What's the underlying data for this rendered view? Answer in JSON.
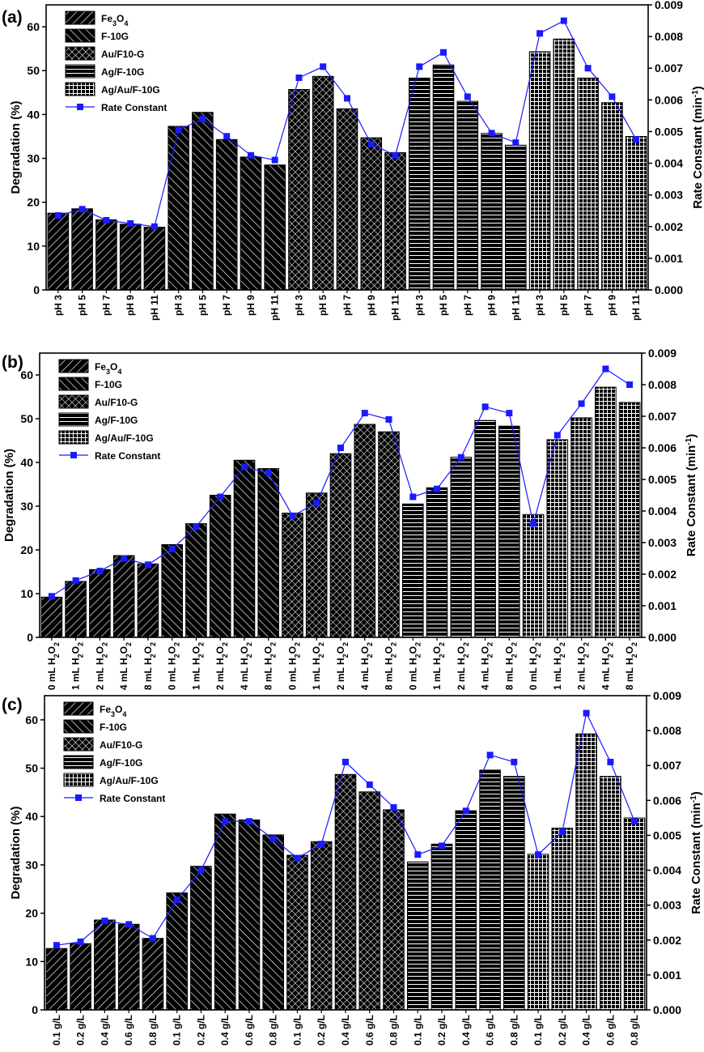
{
  "figure": {
    "legend_labels": [
      "Fe3O4",
      "F-10G",
      "Au/F10-G",
      "Ag/F-10G",
      "Ag/Au/F-10G",
      "Rate Constant"
    ],
    "colors": {
      "bar_fill": "#000000",
      "hatch": "#ffffff",
      "line": "#1a1aff",
      "marker": "#1a1aff"
    }
  },
  "chart_data": [
    {
      "type": "bar",
      "panel_label": "(a)",
      "title": "",
      "xlabel": "",
      "ylabel": "Degradation (%)",
      "y2label": "Rate Constant (min-1)",
      "ylim": [
        0,
        65
      ],
      "y2lim": [
        0,
        0.009
      ],
      "yticks": [
        0,
        10,
        20,
        30,
        40,
        50,
        60
      ],
      "y2ticks": [
        "0.000",
        "0.001",
        "0.002",
        "0.003",
        "0.004",
        "0.005",
        "0.006",
        "0.007",
        "0.008",
        "0.009"
      ],
      "groups": [
        "Fe3O4",
        "F-10G",
        "Au/F10-G",
        "Ag/F-10G",
        "Ag/Au/F-10G"
      ],
      "categories": [
        "pH 3",
        "pH 5",
        "pH 7",
        "pH 9",
        "pH 11",
        "pH 3",
        "pH 5",
        "pH 7",
        "pH 9",
        "pH 11",
        "pH 3",
        "pH 5",
        "pH 7",
        "pH 9",
        "pH 11",
        "pH 3",
        "pH 5",
        "pH 7",
        "pH 9",
        "pH 11",
        "pH 3",
        "pH 5",
        "pH 7",
        "pH 9",
        "pH 11"
      ],
      "series": [
        {
          "name": "Degradation",
          "axis": "left",
          "values": [
            17.5,
            18.5,
            16,
            15,
            14.3,
            37.3,
            40.5,
            34.3,
            30.3,
            28.5,
            45.7,
            48.7,
            41.3,
            34.7,
            31.3,
            48.3,
            51.3,
            43,
            35.7,
            33,
            54.3,
            57.2,
            48.3,
            42.7,
            35
          ]
        },
        {
          "name": "Rate Constant",
          "axis": "right",
          "values": [
            0.00235,
            0.00255,
            0.0022,
            0.0021,
            0.002,
            0.00505,
            0.0054,
            0.00485,
            0.00425,
            0.0041,
            0.0067,
            0.00705,
            0.00605,
            0.0046,
            0.00425,
            0.00705,
            0.0075,
            0.0061,
            0.00495,
            0.00465,
            0.0081,
            0.0085,
            0.007,
            0.0061,
            0.00475
          ]
        }
      ]
    },
    {
      "type": "bar",
      "panel_label": "(b)",
      "title": "",
      "xlabel": "",
      "ylabel": "Degradation (%)",
      "y2label": "Rate Constant (min-1)",
      "ylim": [
        0,
        65
      ],
      "y2lim": [
        0,
        0.009
      ],
      "yticks": [
        0,
        10,
        20,
        30,
        40,
        50,
        60
      ],
      "y2ticks": [
        "0.000",
        "0.001",
        "0.002",
        "0.003",
        "0.004",
        "0.005",
        "0.006",
        "0.007",
        "0.008",
        "0.009"
      ],
      "groups": [
        "Fe3O4",
        "F-10G",
        "Au/F10-G",
        "Ag/F-10G",
        "Ag/Au/F-10G"
      ],
      "categories": [
        "0 mL H2O2",
        "1 mL H2O2",
        "2 mL H2O2",
        "4 mL H2O2",
        "8 mL H2O2",
        "0 mL H2O2",
        "1 mL H2O2",
        "2 mL H2O2",
        "4 mL H2O2",
        "8 mL H2O2",
        "0 mL H2O2",
        "1 mL H2O2",
        "2 mL H2O2",
        "4 mL H2O2",
        "8 mL H2O2",
        "0 mL H2O2",
        "1 mL H2O2",
        "2 mL H2O2",
        "4 mL H2O2",
        "8 mL H2O2",
        "0 mL H2O2",
        "1 mL H2O2",
        "2 mL H2O2",
        "4 mL H2O2",
        "8 mL H2O2"
      ],
      "series": [
        {
          "name": "Degradation",
          "axis": "left",
          "values": [
            9.2,
            12.8,
            15.5,
            18.7,
            16.8,
            21.2,
            26,
            32.5,
            40.5,
            38.6,
            28.4,
            33,
            42,
            48.7,
            47,
            30.5,
            34.2,
            41.2,
            49.6,
            48.3,
            28.1,
            45.2,
            50.2,
            57.2,
            53.7
          ]
        },
        {
          "name": "Rate Constant",
          "axis": "right",
          "values": [
            0.0013,
            0.0018,
            0.0021,
            0.0025,
            0.0023,
            0.0028,
            0.0035,
            0.00445,
            0.0054,
            0.0052,
            0.00385,
            0.00425,
            0.006,
            0.0071,
            0.0069,
            0.00445,
            0.0047,
            0.0057,
            0.0073,
            0.0071,
            0.0036,
            0.0064,
            0.0074,
            0.0085,
            0.008
          ]
        }
      ]
    },
    {
      "type": "bar",
      "panel_label": "(c)",
      "title": "",
      "xlabel": "",
      "ylabel": "Degradation (%)",
      "y2label": "Rate Constant (min-1)",
      "ylim": [
        0,
        65
      ],
      "y2lim": [
        0,
        0.009
      ],
      "yticks": [
        0,
        10,
        20,
        30,
        40,
        50,
        60
      ],
      "y2ticks": [
        "0.000",
        "0.001",
        "0.002",
        "0.003",
        "0.004",
        "0.005",
        "0.006",
        "0.007",
        "0.008",
        "0.009"
      ],
      "groups": [
        "Fe3O4",
        "F-10G",
        "Au/F10-G",
        "Ag/F-10G",
        "Ag/Au/F-10G"
      ],
      "categories": [
        "0.1 g/L",
        "0.2 g/L",
        "0.4 g/L",
        "0.6 g/L",
        "0.8 g/L",
        "0.1 g/L",
        "0.2 g/L",
        "0.4 g/L",
        "0.6 g/L",
        "0.8 g/L",
        "0.1 g/L",
        "0.2 g/L",
        "0.4 g/L",
        "0.6 g/L",
        "0.8 g/L",
        "0.1 g/L",
        "0.2 g/L",
        "0.4 g/L",
        "0.6 g/L",
        "0.8 g/L",
        "0.1 g/L",
        "0.2 g/L",
        "0.4 g/L",
        "0.6 g/L",
        "0.8 g/L"
      ],
      "series": [
        {
          "name": "Degradation",
          "axis": "left",
          "values": [
            12.7,
            13.7,
            18.6,
            17.7,
            14.8,
            24.2,
            29.7,
            40.5,
            39.3,
            36.2,
            32,
            34.8,
            48.7,
            45.1,
            41.4,
            30.6,
            34.3,
            41.2,
            49.6,
            48.3,
            32.2,
            37.6,
            57.1,
            48.3,
            39.7
          ]
        },
        {
          "name": "Rate Constant",
          "axis": "right",
          "values": [
            0.00185,
            0.00195,
            0.00255,
            0.00245,
            0.00205,
            0.00315,
            0.004,
            0.0054,
            0.0054,
            0.0049,
            0.00435,
            0.00475,
            0.0071,
            0.00645,
            0.0058,
            0.00445,
            0.0047,
            0.0057,
            0.0073,
            0.0071,
            0.00445,
            0.0051,
            0.0085,
            0.0071,
            0.0054
          ]
        }
      ]
    }
  ]
}
